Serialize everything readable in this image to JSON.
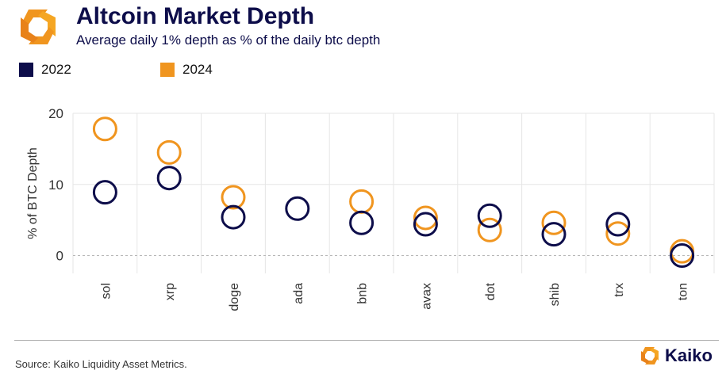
{
  "header": {
    "title": "Altcoin Market Depth",
    "subtitle": "Average daily 1% depth as % of the daily btc depth",
    "logo_icon": "kaiko-logo-icon"
  },
  "legend": {
    "items": [
      {
        "label": "2022",
        "color": "#0d0d4a"
      },
      {
        "label": "2024",
        "color": "#f0951f"
      }
    ]
  },
  "footer": {
    "source": "Source: Kaiko Liquidity Asset Metrics.",
    "brand": "Kaiko"
  },
  "colors": {
    "series_2022": "#0d0d4a",
    "series_2024": "#f0951f",
    "grid": "#e6e6e6",
    "zero_line": "#b8b8b8"
  },
  "chart_data": {
    "type": "scatter",
    "title": "Altcoin Market Depth",
    "subtitle": "Average daily 1% depth as % of the daily btc depth",
    "xlabel": "",
    "ylabel": "% of BTC Depth",
    "ylim": [
      -2.5,
      20
    ],
    "yticks": [
      0,
      10,
      20
    ],
    "grid": true,
    "legend_position": "top-left",
    "categories": [
      "sol",
      "xrp",
      "doge",
      "ada",
      "bnb",
      "avax",
      "dot",
      "shib",
      "trx",
      "ton"
    ],
    "series": [
      {
        "name": "2022",
        "color": "#0d0d4a",
        "values": [
          8.9,
          10.9,
          5.4,
          6.6,
          4.6,
          4.4,
          5.6,
          3.0,
          4.4,
          0.0
        ]
      },
      {
        "name": "2024",
        "color": "#f0951f",
        "values": [
          17.8,
          14.5,
          8.2,
          null,
          7.6,
          5.3,
          3.6,
          4.6,
          3.1,
          0.6
        ]
      }
    ]
  }
}
